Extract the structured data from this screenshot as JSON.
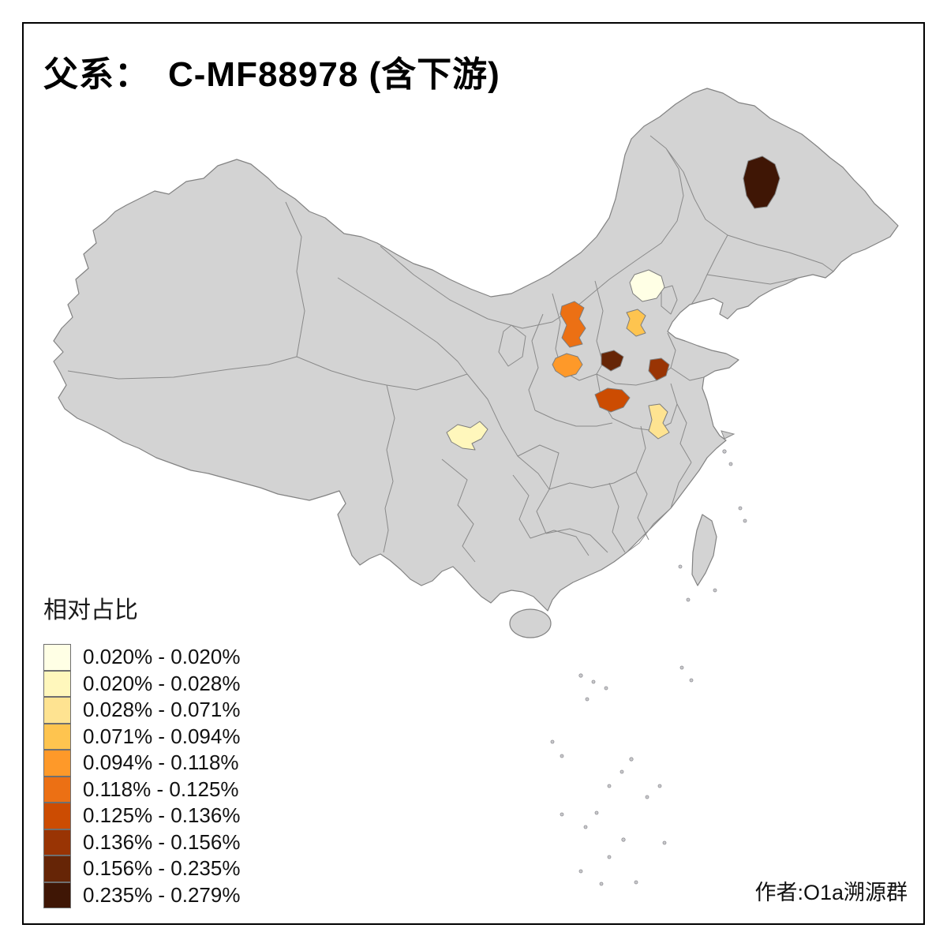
{
  "title": "父系：　C-MF88978 (含下游)",
  "credit": "作者:O1a溯源群",
  "legend": {
    "title": "相对占比",
    "classes": [
      {
        "label": "0.020% - 0.020%",
        "color": "#FFFFE5"
      },
      {
        "label": "0.020% - 0.028%",
        "color": "#FFF7BC"
      },
      {
        "label": "0.028% - 0.071%",
        "color": "#FEE391"
      },
      {
        "label": "0.071% - 0.094%",
        "color": "#FEC44F"
      },
      {
        "label": "0.094% - 0.118%",
        "color": "#FE9929"
      },
      {
        "label": "0.118% - 0.125%",
        "color": "#EC7014"
      },
      {
        "label": "0.125% - 0.136%",
        "color": "#CC4C02"
      },
      {
        "label": "0.136% - 0.156%",
        "color": "#993404"
      },
      {
        "label": "0.156% - 0.235%",
        "color": "#662506"
      },
      {
        "label": "0.235% - 0.279%",
        "color": "#3F1605"
      }
    ]
  },
  "map": {
    "base_fill": "#d3d3d3",
    "boundary_color": "#828282",
    "sea_color": "#ffffff",
    "highlighted_regions": [
      {
        "map_position": "north, near Beijing",
        "range": "0.020% - 0.020%",
        "color": "#FFFFE5"
      },
      {
        "map_position": "southwest-center, Sichuan basin",
        "range": "0.020% - 0.028%",
        "color": "#FFF7BC"
      },
      {
        "map_position": "east-center, Huai plain",
        "range": "0.028% - 0.071%",
        "color": "#FEE391"
      },
      {
        "map_position": "north, central Hebei",
        "range": "0.071% - 0.094%",
        "color": "#FEC44F"
      },
      {
        "map_position": "center-north, northern Shaanxi",
        "range": "0.094% - 0.118%",
        "color": "#FE9929"
      },
      {
        "map_position": "north, central Shanxi",
        "range": "0.118% - 0.125%",
        "color": "#EC7014"
      },
      {
        "map_position": "center, southern Shaanxi",
        "range": "0.125% - 0.136%",
        "color": "#CC4C02"
      },
      {
        "map_position": "center-east, northern Henan",
        "range": "0.136% - 0.156%",
        "color": "#993404"
      },
      {
        "map_position": "center, Shanxi–Shaanxi–Henan junction",
        "range": "0.156% - 0.235%",
        "color": "#662506"
      },
      {
        "map_position": "northeast, central Heilongjiang",
        "range": "0.235% - 0.279%",
        "color": "#3F1605"
      }
    ]
  },
  "chart_data": {
    "type": "choropleth-map",
    "title": "父系：　C-MF88978 (含下游)",
    "legend_title": "相对占比",
    "value_unit": "%",
    "class_breaks": [
      0.02,
      0.02,
      0.028,
      0.071,
      0.094,
      0.118,
      0.125,
      0.136,
      0.156,
      0.235,
      0.279
    ],
    "colors": [
      "#FFFFE5",
      "#FFF7BC",
      "#FEE391",
      "#FEC44F",
      "#FE9929",
      "#EC7014",
      "#CC4C02",
      "#993404",
      "#662506",
      "#3F1605"
    ],
    "region_count": 10
  }
}
